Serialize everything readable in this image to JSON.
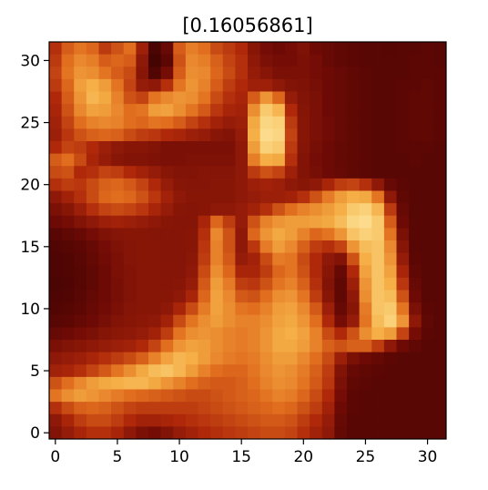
{
  "chart_data": {
    "type": "heatmap",
    "title": "[0.16056861]",
    "xlabel": "",
    "ylabel": "",
    "xlim": [
      -0.5,
      31.5
    ],
    "ylim": [
      31.5,
      -0.5
    ],
    "grid": false,
    "colormap": "gist_heat / hot-like (dark red → orange → pale yellow)",
    "x_ticks": [
      0,
      5,
      10,
      15,
      20,
      25,
      30
    ],
    "y_ticks": [
      0,
      5,
      10,
      15,
      20,
      25,
      30
    ],
    "x_tick_labels": [
      "0",
      "5",
      "10",
      "15",
      "20",
      "25",
      "30"
    ],
    "y_tick_labels": [
      "0",
      "5",
      "10",
      "15",
      "20",
      "25",
      "30"
    ],
    "grid_size": [
      32,
      32
    ],
    "value_range": [
      0,
      1
    ],
    "values": [
      [
        0.42,
        0.55,
        0.62,
        0.58,
        0.45,
        0.52,
        0.6,
        0.35,
        0.1,
        0.18,
        0.55,
        0.65,
        0.6,
        0.5,
        0.45,
        0.4,
        0.28,
        0.22,
        0.2,
        0.22,
        0.25,
        0.2,
        0.18,
        0.16,
        0.15,
        0.14,
        0.14,
        0.13,
        0.14,
        0.14,
        0.15,
        0.14
      ],
      [
        0.45,
        0.6,
        0.68,
        0.65,
        0.55,
        0.58,
        0.55,
        0.3,
        0.08,
        0.15,
        0.52,
        0.68,
        0.65,
        0.56,
        0.48,
        0.42,
        0.3,
        0.24,
        0.22,
        0.22,
        0.24,
        0.22,
        0.18,
        0.16,
        0.15,
        0.14,
        0.14,
        0.14,
        0.14,
        0.15,
        0.15,
        0.14
      ],
      [
        0.48,
        0.62,
        0.72,
        0.7,
        0.62,
        0.55,
        0.5,
        0.28,
        0.12,
        0.22,
        0.55,
        0.7,
        0.68,
        0.58,
        0.5,
        0.42,
        0.32,
        0.28,
        0.24,
        0.24,
        0.24,
        0.22,
        0.2,
        0.18,
        0.16,
        0.15,
        0.14,
        0.14,
        0.14,
        0.15,
        0.15,
        0.15
      ],
      [
        0.45,
        0.58,
        0.75,
        0.8,
        0.74,
        0.62,
        0.48,
        0.32,
        0.3,
        0.42,
        0.62,
        0.72,
        0.66,
        0.55,
        0.46,
        0.4,
        0.35,
        0.35,
        0.3,
        0.26,
        0.25,
        0.23,
        0.2,
        0.18,
        0.16,
        0.15,
        0.14,
        0.14,
        0.15,
        0.15,
        0.16,
        0.15
      ],
      [
        0.4,
        0.55,
        0.72,
        0.82,
        0.78,
        0.66,
        0.52,
        0.48,
        0.62,
        0.68,
        0.72,
        0.7,
        0.62,
        0.5,
        0.42,
        0.38,
        0.55,
        0.72,
        0.58,
        0.32,
        0.26,
        0.24,
        0.2,
        0.18,
        0.16,
        0.15,
        0.14,
        0.14,
        0.15,
        0.16,
        0.16,
        0.15
      ],
      [
        0.38,
        0.52,
        0.68,
        0.76,
        0.74,
        0.68,
        0.6,
        0.62,
        0.74,
        0.76,
        0.7,
        0.62,
        0.54,
        0.44,
        0.38,
        0.36,
        0.7,
        0.88,
        0.82,
        0.4,
        0.27,
        0.24,
        0.2,
        0.18,
        0.16,
        0.15,
        0.14,
        0.14,
        0.15,
        0.16,
        0.16,
        0.15
      ],
      [
        0.36,
        0.48,
        0.6,
        0.66,
        0.68,
        0.66,
        0.6,
        0.58,
        0.62,
        0.6,
        0.55,
        0.48,
        0.42,
        0.36,
        0.32,
        0.34,
        0.78,
        0.92,
        0.9,
        0.45,
        0.28,
        0.24,
        0.21,
        0.18,
        0.16,
        0.15,
        0.14,
        0.14,
        0.15,
        0.16,
        0.16,
        0.15
      ],
      [
        0.34,
        0.44,
        0.52,
        0.56,
        0.58,
        0.56,
        0.5,
        0.46,
        0.44,
        0.4,
        0.38,
        0.34,
        0.32,
        0.28,
        0.26,
        0.32,
        0.8,
        0.94,
        0.92,
        0.48,
        0.28,
        0.24,
        0.21,
        0.18,
        0.16,
        0.15,
        0.14,
        0.14,
        0.15,
        0.16,
        0.16,
        0.15
      ],
      [
        0.4,
        0.48,
        0.46,
        0.4,
        0.34,
        0.3,
        0.28,
        0.28,
        0.26,
        0.24,
        0.24,
        0.24,
        0.24,
        0.24,
        0.24,
        0.3,
        0.74,
        0.9,
        0.88,
        0.45,
        0.27,
        0.23,
        0.2,
        0.17,
        0.16,
        0.15,
        0.14,
        0.14,
        0.15,
        0.15,
        0.15,
        0.14
      ],
      [
        0.55,
        0.6,
        0.5,
        0.38,
        0.32,
        0.28,
        0.26,
        0.26,
        0.25,
        0.24,
        0.24,
        0.25,
        0.25,
        0.25,
        0.25,
        0.3,
        0.65,
        0.8,
        0.78,
        0.42,
        0.26,
        0.22,
        0.2,
        0.17,
        0.16,
        0.15,
        0.14,
        0.14,
        0.14,
        0.15,
        0.14,
        0.14
      ],
      [
        0.5,
        0.52,
        0.4,
        0.42,
        0.48,
        0.46,
        0.4,
        0.36,
        0.32,
        0.28,
        0.26,
        0.26,
        0.27,
        0.27,
        0.27,
        0.3,
        0.45,
        0.52,
        0.48,
        0.35,
        0.26,
        0.23,
        0.2,
        0.18,
        0.16,
        0.15,
        0.14,
        0.14,
        0.14,
        0.14,
        0.14,
        0.14
      ],
      [
        0.42,
        0.46,
        0.44,
        0.5,
        0.56,
        0.58,
        0.54,
        0.48,
        0.4,
        0.32,
        0.28,
        0.27,
        0.27,
        0.28,
        0.28,
        0.3,
        0.34,
        0.36,
        0.34,
        0.3,
        0.28,
        0.3,
        0.38,
        0.46,
        0.48,
        0.42,
        0.3,
        0.18,
        0.15,
        0.14,
        0.14,
        0.14
      ],
      [
        0.3,
        0.36,
        0.42,
        0.5,
        0.58,
        0.6,
        0.58,
        0.52,
        0.44,
        0.36,
        0.3,
        0.28,
        0.28,
        0.28,
        0.28,
        0.3,
        0.32,
        0.34,
        0.34,
        0.36,
        0.42,
        0.52,
        0.64,
        0.74,
        0.8,
        0.78,
        0.62,
        0.3,
        0.16,
        0.14,
        0.14,
        0.14
      ],
      [
        0.24,
        0.28,
        0.34,
        0.42,
        0.48,
        0.5,
        0.48,
        0.44,
        0.38,
        0.32,
        0.28,
        0.27,
        0.28,
        0.3,
        0.3,
        0.32,
        0.36,
        0.42,
        0.52,
        0.6,
        0.66,
        0.7,
        0.74,
        0.8,
        0.88,
        0.9,
        0.82,
        0.45,
        0.18,
        0.14,
        0.14,
        0.14
      ],
      [
        0.2,
        0.22,
        0.26,
        0.3,
        0.34,
        0.36,
        0.34,
        0.32,
        0.3,
        0.28,
        0.27,
        0.27,
        0.38,
        0.58,
        0.46,
        0.32,
        0.52,
        0.66,
        0.72,
        0.74,
        0.74,
        0.76,
        0.78,
        0.84,
        0.92,
        0.94,
        0.88,
        0.55,
        0.2,
        0.14,
        0.14,
        0.14
      ],
      [
        0.14,
        0.16,
        0.18,
        0.22,
        0.25,
        0.27,
        0.28,
        0.28,
        0.27,
        0.27,
        0.27,
        0.28,
        0.42,
        0.68,
        0.52,
        0.3,
        0.58,
        0.72,
        0.78,
        0.74,
        0.66,
        0.58,
        0.62,
        0.72,
        0.86,
        0.9,
        0.88,
        0.62,
        0.24,
        0.14,
        0.14,
        0.14
      ],
      [
        0.12,
        0.13,
        0.15,
        0.18,
        0.22,
        0.25,
        0.27,
        0.28,
        0.28,
        0.27,
        0.27,
        0.28,
        0.44,
        0.66,
        0.52,
        0.3,
        0.44,
        0.64,
        0.74,
        0.68,
        0.56,
        0.46,
        0.42,
        0.48,
        0.72,
        0.84,
        0.86,
        0.68,
        0.28,
        0.14,
        0.14,
        0.14
      ],
      [
        0.11,
        0.12,
        0.14,
        0.17,
        0.21,
        0.24,
        0.27,
        0.28,
        0.28,
        0.27,
        0.27,
        0.29,
        0.46,
        0.66,
        0.54,
        0.32,
        0.36,
        0.5,
        0.64,
        0.62,
        0.5,
        0.4,
        0.3,
        0.26,
        0.52,
        0.8,
        0.86,
        0.72,
        0.32,
        0.15,
        0.14,
        0.14
      ],
      [
        0.11,
        0.12,
        0.13,
        0.16,
        0.2,
        0.24,
        0.26,
        0.28,
        0.28,
        0.27,
        0.27,
        0.3,
        0.5,
        0.7,
        0.58,
        0.38,
        0.38,
        0.46,
        0.58,
        0.62,
        0.52,
        0.4,
        0.28,
        0.18,
        0.4,
        0.76,
        0.86,
        0.76,
        0.38,
        0.16,
        0.14,
        0.14
      ],
      [
        0.1,
        0.11,
        0.13,
        0.16,
        0.2,
        0.23,
        0.26,
        0.28,
        0.28,
        0.27,
        0.28,
        0.32,
        0.54,
        0.74,
        0.64,
        0.46,
        0.44,
        0.52,
        0.62,
        0.66,
        0.56,
        0.42,
        0.26,
        0.16,
        0.34,
        0.72,
        0.86,
        0.8,
        0.44,
        0.18,
        0.14,
        0.14
      ],
      [
        0.11,
        0.12,
        0.14,
        0.17,
        0.2,
        0.23,
        0.26,
        0.28,
        0.28,
        0.28,
        0.3,
        0.38,
        0.58,
        0.76,
        0.68,
        0.54,
        0.52,
        0.6,
        0.7,
        0.72,
        0.62,
        0.46,
        0.28,
        0.16,
        0.3,
        0.7,
        0.86,
        0.84,
        0.52,
        0.2,
        0.14,
        0.14
      ],
      [
        0.12,
        0.13,
        0.15,
        0.18,
        0.21,
        0.24,
        0.27,
        0.28,
        0.28,
        0.3,
        0.38,
        0.5,
        0.64,
        0.76,
        0.7,
        0.62,
        0.6,
        0.66,
        0.74,
        0.76,
        0.68,
        0.54,
        0.34,
        0.18,
        0.28,
        0.64,
        0.86,
        0.88,
        0.62,
        0.24,
        0.15,
        0.14
      ],
      [
        0.14,
        0.15,
        0.17,
        0.2,
        0.23,
        0.26,
        0.28,
        0.29,
        0.3,
        0.36,
        0.5,
        0.62,
        0.7,
        0.74,
        0.7,
        0.66,
        0.66,
        0.7,
        0.76,
        0.78,
        0.72,
        0.6,
        0.4,
        0.22,
        0.32,
        0.62,
        0.84,
        0.9,
        0.72,
        0.3,
        0.16,
        0.14
      ],
      [
        0.18,
        0.2,
        0.22,
        0.24,
        0.27,
        0.29,
        0.3,
        0.32,
        0.36,
        0.46,
        0.62,
        0.7,
        0.72,
        0.7,
        0.66,
        0.64,
        0.66,
        0.72,
        0.78,
        0.8,
        0.76,
        0.66,
        0.5,
        0.4,
        0.52,
        0.7,
        0.8,
        0.74,
        0.48,
        0.22,
        0.15,
        0.14
      ],
      [
        0.24,
        0.26,
        0.28,
        0.3,
        0.32,
        0.34,
        0.36,
        0.4,
        0.48,
        0.6,
        0.72,
        0.76,
        0.74,
        0.7,
        0.66,
        0.64,
        0.66,
        0.72,
        0.78,
        0.78,
        0.74,
        0.66,
        0.56,
        0.52,
        0.56,
        0.56,
        0.46,
        0.3,
        0.2,
        0.16,
        0.14,
        0.14
      ],
      [
        0.3,
        0.32,
        0.34,
        0.38,
        0.42,
        0.46,
        0.5,
        0.56,
        0.66,
        0.76,
        0.82,
        0.8,
        0.74,
        0.68,
        0.64,
        0.62,
        0.64,
        0.7,
        0.74,
        0.74,
        0.68,
        0.6,
        0.5,
        0.34,
        0.24,
        0.2,
        0.17,
        0.15,
        0.14,
        0.14,
        0.14,
        0.14
      ],
      [
        0.36,
        0.38,
        0.42,
        0.48,
        0.54,
        0.62,
        0.7,
        0.78,
        0.84,
        0.86,
        0.82,
        0.74,
        0.66,
        0.6,
        0.58,
        0.58,
        0.62,
        0.68,
        0.72,
        0.7,
        0.64,
        0.56,
        0.46,
        0.26,
        0.18,
        0.16,
        0.15,
        0.14,
        0.14,
        0.14,
        0.14,
        0.14
      ],
      [
        0.52,
        0.6,
        0.68,
        0.74,
        0.78,
        0.8,
        0.82,
        0.82,
        0.78,
        0.72,
        0.66,
        0.6,
        0.56,
        0.54,
        0.54,
        0.56,
        0.6,
        0.66,
        0.7,
        0.68,
        0.62,
        0.54,
        0.44,
        0.24,
        0.16,
        0.15,
        0.14,
        0.14,
        0.14,
        0.14,
        0.14,
        0.14
      ],
      [
        0.62,
        0.7,
        0.74,
        0.72,
        0.68,
        0.64,
        0.6,
        0.58,
        0.56,
        0.54,
        0.52,
        0.5,
        0.5,
        0.52,
        0.54,
        0.56,
        0.58,
        0.62,
        0.66,
        0.64,
        0.58,
        0.5,
        0.4,
        0.22,
        0.15,
        0.14,
        0.14,
        0.14,
        0.14,
        0.14,
        0.14,
        0.14
      ],
      [
        0.42,
        0.5,
        0.56,
        0.58,
        0.56,
        0.52,
        0.48,
        0.46,
        0.46,
        0.46,
        0.46,
        0.46,
        0.48,
        0.5,
        0.52,
        0.54,
        0.56,
        0.58,
        0.6,
        0.58,
        0.52,
        0.46,
        0.36,
        0.2,
        0.15,
        0.14,
        0.14,
        0.14,
        0.14,
        0.14,
        0.14,
        0.14
      ],
      [
        0.3,
        0.38,
        0.46,
        0.5,
        0.5,
        0.46,
        0.4,
        0.36,
        0.36,
        0.38,
        0.4,
        0.42,
        0.44,
        0.46,
        0.48,
        0.5,
        0.52,
        0.54,
        0.54,
        0.52,
        0.46,
        0.4,
        0.32,
        0.18,
        0.14,
        0.14,
        0.14,
        0.14,
        0.14,
        0.14,
        0.14,
        0.14
      ],
      [
        0.26,
        0.32,
        0.38,
        0.42,
        0.42,
        0.38,
        0.3,
        0.24,
        0.22,
        0.26,
        0.32,
        0.36,
        0.4,
        0.42,
        0.44,
        0.46,
        0.48,
        0.5,
        0.5,
        0.48,
        0.42,
        0.36,
        0.3,
        0.17,
        0.14,
        0.14,
        0.14,
        0.14,
        0.14,
        0.14,
        0.14,
        0.14
      ]
    ]
  }
}
